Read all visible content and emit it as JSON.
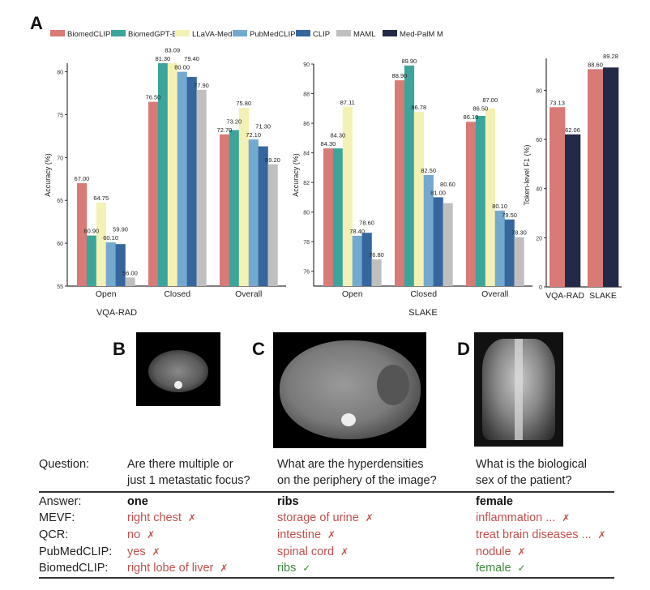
{
  "panel_labels": {
    "a": "A",
    "b": "B",
    "c": "C",
    "d": "D"
  },
  "legend": [
    {
      "name": "BiomedCLIP",
      "color": "#d87a76"
    },
    {
      "name": "BiomedGPT-B",
      "color": "#3ba59b"
    },
    {
      "name": "LLaVA-Med",
      "color": "#f4f1b4"
    },
    {
      "name": "PubMedCLIP",
      "color": "#74a9cf"
    },
    {
      "name": "CLIP",
      "color": "#35679e"
    },
    {
      "name": "MAML",
      "color": "#bfbfbf"
    },
    {
      "name": "Med-PalM M",
      "color": "#232a48"
    }
  ],
  "chart_data": [
    {
      "type": "bar",
      "xlabel": "VQA-RAD",
      "ylabel": "Accuracy (%)",
      "categories": [
        "Open",
        "Closed",
        "Overall"
      ],
      "ylim": [
        55,
        81
      ],
      "yticks": [
        55,
        60,
        65,
        70,
        75,
        80
      ],
      "grid": false,
      "series": [
        {
          "name": "BiomedCLIP",
          "color": "#d87a76",
          "values": [
            67.0,
            76.5,
            72.7
          ]
        },
        {
          "name": "BiomedGPT-B",
          "color": "#3ba59b",
          "values": [
            60.9,
            81.3,
            73.2
          ]
        },
        {
          "name": "LLaVA-Med",
          "color": "#f4f1b4",
          "values": [
            64.75,
            83.09,
            75.8
          ]
        },
        {
          "name": "PubMedCLIP",
          "color": "#74a9cf",
          "values": [
            60.1,
            80.0,
            72.1
          ]
        },
        {
          "name": "CLIP",
          "color": "#35679e",
          "values": [
            59.9,
            79.4,
            71.3
          ]
        },
        {
          "name": "MAML",
          "color": "#bfbfbf",
          "values": [
            56.0,
            77.9,
            69.2
          ]
        }
      ]
    },
    {
      "type": "bar",
      "xlabel": "SLAKE",
      "ylabel": "Accuracy (%)",
      "categories": [
        "Open",
        "Closed",
        "Overall"
      ],
      "ylim": [
        75,
        90
      ],
      "yticks": [
        76,
        78,
        80,
        82,
        84,
        86,
        88,
        90
      ],
      "grid": false,
      "series": [
        {
          "name": "BiomedCLIP",
          "color": "#d87a76",
          "values": [
            84.3,
            88.9,
            86.1
          ]
        },
        {
          "name": "BiomedGPT-B",
          "color": "#3ba59b",
          "values": [
            84.3,
            89.9,
            86.5
          ]
        },
        {
          "name": "LLaVA-Med",
          "color": "#f4f1b4",
          "values": [
            87.11,
            86.78,
            87.0
          ]
        },
        {
          "name": "PubMedCLIP",
          "color": "#74a9cf",
          "values": [
            78.4,
            82.5,
            80.1
          ]
        },
        {
          "name": "CLIP",
          "color": "#35679e",
          "values": [
            78.6,
            81.0,
            79.5
          ]
        },
        {
          "name": "MAML",
          "color": "#bfbfbf",
          "values": [
            76.8,
            80.6,
            78.3
          ]
        }
      ]
    },
    {
      "type": "bar",
      "xlabel": "",
      "ylabel": "Token-level F1 (%)",
      "categories": [
        "VQA-RAD",
        "SLAKE"
      ],
      "ylim": [
        0,
        93
      ],
      "yticks": [
        0,
        20,
        40,
        60,
        80
      ],
      "grid": false,
      "series": [
        {
          "name": "BiomedCLIP",
          "color": "#d87a76",
          "values": [
            73.13,
            88.6
          ]
        },
        {
          "name": "Med-PalM M",
          "color": "#232a48",
          "values": [
            62.06,
            89.28
          ]
        }
      ]
    }
  ],
  "table": {
    "row_labels": {
      "question": "Question:",
      "answer": "Answer:",
      "mevf": "MEVF:",
      "qcr": "QCR:",
      "pubmedclip": "PubMedCLIP:",
      "biomedclip": "BiomedCLIP:"
    },
    "columns": [
      {
        "question_line1": "Are there multiple or",
        "question_line2": "just 1 metastatic focus?",
        "answer": "one",
        "mevf": "right chest",
        "qcr": "no",
        "pubmedclip": "yes",
        "biomedclip": "right lobe of liver",
        "mevf_mark": "✗",
        "qcr_mark": "✗",
        "pubmedclip_mark": "✗",
        "biomedclip_mark": "✗"
      },
      {
        "question_line1": "What are the hyperdensities",
        "question_line2": "on the periphery of the image?",
        "answer": "ribs",
        "mevf": "storage of urine",
        "qcr": "intestine",
        "pubmedclip": "spinal cord",
        "biomedclip": "ribs",
        "mevf_mark": "✗",
        "qcr_mark": "✗",
        "pubmedclip_mark": "✗",
        "biomedclip_mark": "✓"
      },
      {
        "question_line1": "What is the biological",
        "question_line2": "sex of the patient?",
        "answer": "female",
        "mevf": "inflammation ...",
        "qcr": "treat brain diseases ...",
        "pubmedclip": "nodule",
        "biomedclip": "female",
        "mevf_mark": "✗",
        "qcr_mark": "✗",
        "pubmedclip_mark": "✗",
        "biomedclip_mark": "✓"
      }
    ]
  }
}
